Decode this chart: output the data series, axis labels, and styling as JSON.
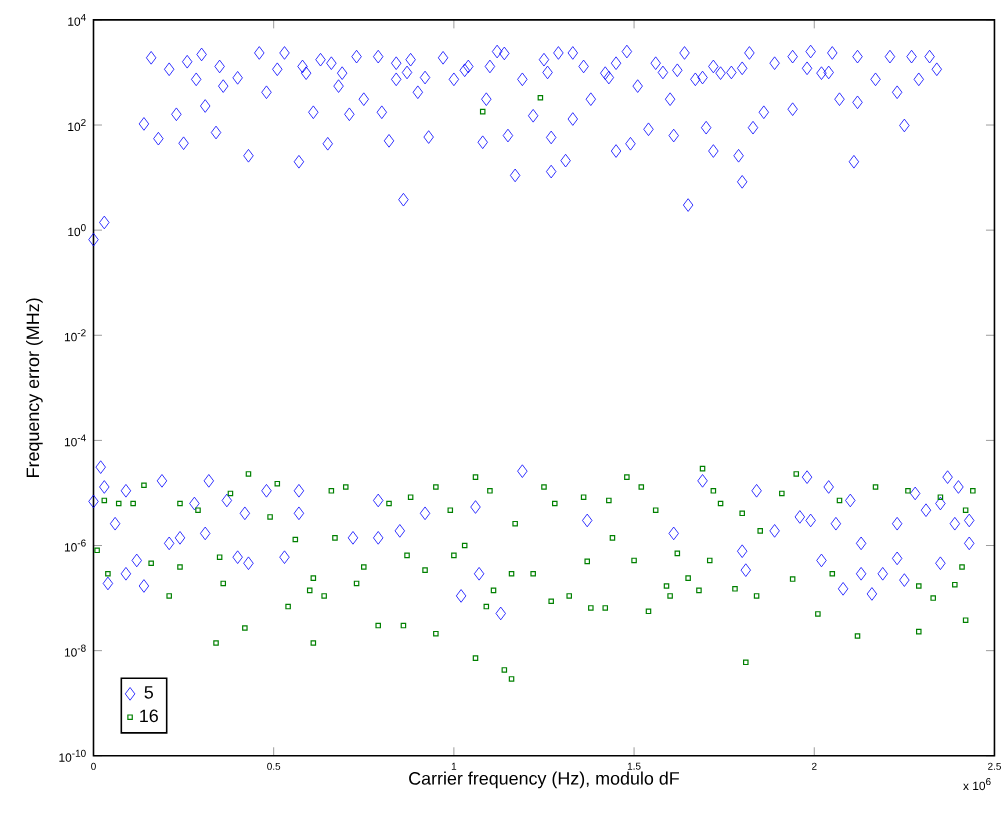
{
  "chart_data": {
    "type": "scatter",
    "xlabel": "Carrier frequency (Hz), modulo dF",
    "ylabel": "Frequency error (MHz)",
    "log": "y",
    "grid": false,
    "legend": "bottom left",
    "xlim": [
      0,
      2.5
    ],
    "xticks": [
      0,
      0.5,
      1,
      1.5,
      2,
      2.5
    ],
    "ylim": [
      1e-10,
      10000.0
    ],
    "yticks": [
      {
        "value": 1e-10,
        "label": "10$^{-10}$"
      },
      {
        "value": 1e-08,
        "label": "10$^{-8}$"
      },
      {
        "value": 1e-06,
        "label": "10$^{-6}$"
      },
      {
        "value": 0.0001,
        "label": "10$^{-4}$"
      },
      {
        "value": 0.01,
        "label": "10$^{-2}$"
      },
      {
        "value": 1,
        "label": "10$^{0}$"
      },
      {
        "value": 100,
        "label": "10$^{2}$"
      },
      {
        "value": 10000,
        "label": "10$^{4}$"
      }
    ],
    "annotations": [
      "x 10$^{6}$"
    ],
    "series": [
      {
        "name": "5",
        "color": "#0000ff",
        "marker": "diamond",
        "x": [
          0,
          0.03,
          0.14,
          0.16,
          0.18,
          0.21,
          0.23,
          0.25,
          0.26,
          0.285,
          0.3,
          0.31,
          0.34,
          0.35,
          0.36,
          0.4,
          0.43,
          0.46,
          0.48,
          0.51,
          0.53,
          0.57,
          0.59,
          0.61,
          0.63,
          0.65,
          0.68,
          0.71,
          0.73,
          0.75,
          0.79,
          0.8,
          0.82,
          0.84,
          0.86,
          0.88,
          0.9,
          0.93,
          0.97,
          1.0,
          1.04,
          1.08,
          1.09,
          1.12,
          1.15,
          1.17,
          1.19,
          1.22,
          1.25,
          1.27,
          1.27,
          1.29,
          1.31,
          1.33,
          1.33,
          1.38,
          1.42,
          1.45,
          1.48,
          1.49,
          1.51,
          1.54,
          1.56,
          1.6,
          1.61,
          1.64,
          1.65,
          1.67,
          1.7,
          1.72,
          1.74,
          1.79,
          1.8,
          1.82,
          1.83,
          1.86,
          1.89,
          1.94,
          1.94,
          1.99,
          2.02,
          2.05,
          2.07,
          2.11,
          2.12,
          2.12,
          2.17,
          2.21,
          2.23,
          2.25,
          2.27,
          2.29,
          2.32,
          2.34,
          0.58,
          0.66,
          0.69,
          0.84,
          0.87,
          0.92,
          1.03,
          1.1,
          1.14,
          1.26,
          1.36,
          1.43,
          1.45,
          1.58,
          1.62,
          1.69,
          1.72,
          1.77,
          1.8,
          1.98,
          2.04,
          0.02,
          0,
          0.03,
          0.04,
          0.06,
          0.09,
          0.09,
          0.12,
          0.14,
          0.19,
          0.21,
          0.24,
          0.28,
          0.31,
          0.32,
          0.37,
          0.4,
          0.42,
          0.43,
          0.48,
          0.53,
          0.57,
          0.57,
          0.72,
          0.79,
          0.79,
          0.85,
          0.92,
          1.02,
          1.06,
          1.07,
          1.13,
          1.19,
          1.37,
          1.61,
          1.69,
          1.8,
          1.81,
          1.84,
          1.89,
          1.96,
          1.98,
          1.99,
          2.02,
          2.04,
          2.06,
          2.08,
          2.1,
          2.13,
          2.13,
          2.16,
          2.19,
          2.23,
          2.23,
          2.25,
          2.28,
          2.31,
          2.35,
          2.37,
          2.39,
          2.4,
          2.43,
          2.43,
          2.35
        ],
        "values": [
          0.66,
          1.4,
          105,
          1900,
          55,
          1150,
          160,
          45,
          1600,
          740,
          2200,
          230,
          72,
          1300,
          550,
          790,
          26,
          2350,
          420,
          1150,
          2350,
          20,
          970,
          175,
          1750,
          44,
          550,
          160,
          2000,
          310,
          2000,
          175,
          50,
          740,
          3.8,
          1750,
          420,
          59,
          1900,
          740,
          1300,
          47,
          310,
          2500,
          63,
          11,
          740,
          150,
          1750,
          58,
          13,
          2350,
          21,
          130,
          2350,
          310,
          970,
          32,
          2500,
          44,
          550,
          83,
          1500,
          310,
          63,
          2350,
          3.0,
          740,
          89,
          32,
          970,
          26,
          8.3,
          2350,
          89,
          175,
          1500,
          2000,
          200,
          2500,
          970,
          2350,
          310,
          20,
          2000,
          270,
          740,
          2000,
          420,
          98,
          2000,
          740,
          2000,
          1150,
          1300,
          1500,
          970,
          1500,
          1000,
          800,
          1100,
          1300,
          2300,
          1000,
          1300,
          800,
          1500,
          1000,
          1100,
          800,
          1300,
          1000,
          1200,
          1200,
          1000,
          3.1e-05,
          6.9e-06,
          1.3e-05,
          1.9e-07,
          2.6e-06,
          1.1e-05,
          2.9e-07,
          5.2e-07,
          1.7e-07,
          1.7e-05,
          1.1e-06,
          1.4e-06,
          6.3e-06,
          1.7e-06,
          1.7e-05,
          7.2e-06,
          6e-07,
          4.1e-06,
          4.6e-07,
          1.1e-05,
          6e-07,
          1.1e-05,
          4.1e-06,
          1.4e-06,
          7.2e-06,
          1.4e-06,
          1.9e-06,
          4.1e-06,
          1.1e-07,
          5.4e-06,
          2.9e-07,
          5.1e-08,
          2.6e-05,
          3e-06,
          1.7e-06,
          1.7e-05,
          7.8e-07,
          3.4e-07,
          1.1e-05,
          1.9e-06,
          3.5e-06,
          2e-05,
          3e-06,
          5.2e-07,
          1.3e-05,
          2.6e-06,
          1.5e-07,
          7.2e-06,
          1.1e-06,
          2.9e-07,
          1.2e-07,
          2.9e-07,
          2.6e-06,
          5.7e-07,
          2.2e-07,
          9.8e-06,
          4.7e-06,
          4.6e-07,
          2e-05,
          2.6e-06,
          1.3e-05,
          3e-06,
          1.1e-06,
          6.3e-06
        ]
      },
      {
        "name": "16",
        "color": "#008000",
        "marker": "square",
        "x": [
          1.08,
          1.24,
          0.01,
          0.04,
          0.07,
          0.14,
          0.16,
          0.21,
          0.24,
          0.24,
          0.35,
          0.34,
          0.36,
          0.42,
          0.43,
          0.49,
          0.54,
          0.56,
          0.6,
          0.61,
          0.61,
          0.64,
          0.67,
          0.7,
          0.73,
          0.75,
          0.79,
          0.82,
          0.86,
          0.87,
          0.92,
          0.95,
          0.95,
          1.0,
          1.03,
          1.06,
          1.06,
          1.09,
          1.11,
          1.14,
          1.16,
          1.16,
          1.17,
          1.22,
          1.25,
          1.27,
          1.32,
          1.36,
          1.37,
          1.38,
          1.42,
          1.44,
          1.48,
          1.5,
          1.54,
          1.56,
          1.59,
          1.6,
          1.62,
          1.65,
          1.68,
          1.69,
          1.71,
          1.74,
          1.78,
          1.81,
          1.84,
          1.85,
          1.94,
          1.95,
          2.01,
          2.05,
          2.12,
          2.17,
          2.29,
          2.29,
          2.33,
          2.39,
          2.41,
          2.42,
          2.44,
          2.42,
          0.51,
          0.66,
          0.88,
          0.99,
          1.1,
          1.28,
          1.43,
          1.52,
          1.72,
          1.8,
          1.91,
          2.07,
          2.26,
          2.35,
          0.03,
          0.11,
          0.29,
          0.38
        ],
        "values": [
          180,
          330,
          8.1e-07,
          2.9e-07,
          6.3e-06,
          1.4e-05,
          4.6e-07,
          1.1e-07,
          3.9e-07,
          6.3e-06,
          6e-07,
          1.4e-08,
          1.9e-07,
          2.7e-08,
          2.3e-05,
          3.5e-06,
          6.9e-08,
          1.3e-06,
          1.4e-07,
          2.4e-07,
          1.4e-08,
          1.1e-07,
          1.4e-06,
          1.3e-05,
          1.9e-07,
          3.9e-07,
          3e-08,
          6.3e-06,
          3e-08,
          6.5e-07,
          3.4e-07,
          2.1e-08,
          1.3e-05,
          6.5e-07,
          1e-06,
          7.2e-09,
          2e-05,
          6.9e-08,
          1.4e-07,
          4.3e-09,
          2.9e-09,
          2.9e-07,
          2.6e-06,
          2.9e-07,
          1.3e-05,
          8.7e-08,
          1.1e-07,
          8.3e-06,
          5e-07,
          6.5e-08,
          6.5e-08,
          1.4e-06,
          2e-05,
          5.2e-07,
          5.6e-08,
          4.7e-06,
          1.7e-07,
          1.1e-07,
          7.1e-07,
          2.4e-07,
          1.4e-07,
          2.9e-05,
          5.2e-07,
          6.3e-06,
          1.5e-07,
          6e-09,
          1.1e-07,
          1.9e-06,
          2.3e-07,
          2.3e-05,
          5e-08,
          2.9e-07,
          1.9e-08,
          1.3e-05,
          2.3e-08,
          1.7e-07,
          1e-07,
          1.8e-07,
          3.9e-07,
          3.8e-08,
          1.1e-05,
          4.7e-06,
          1.5e-05,
          1.1e-05,
          8.3e-06,
          4.7e-06,
          1.1e-05,
          6.3e-06,
          7.2e-06,
          1.3e-05,
          1.1e-05,
          4.1e-06,
          9.8e-06,
          7.2e-06,
          1.1e-05,
          8.3e-06,
          7.2e-06,
          6.3e-06,
          4.7e-06,
          9.8e-06
        ]
      }
    ]
  }
}
